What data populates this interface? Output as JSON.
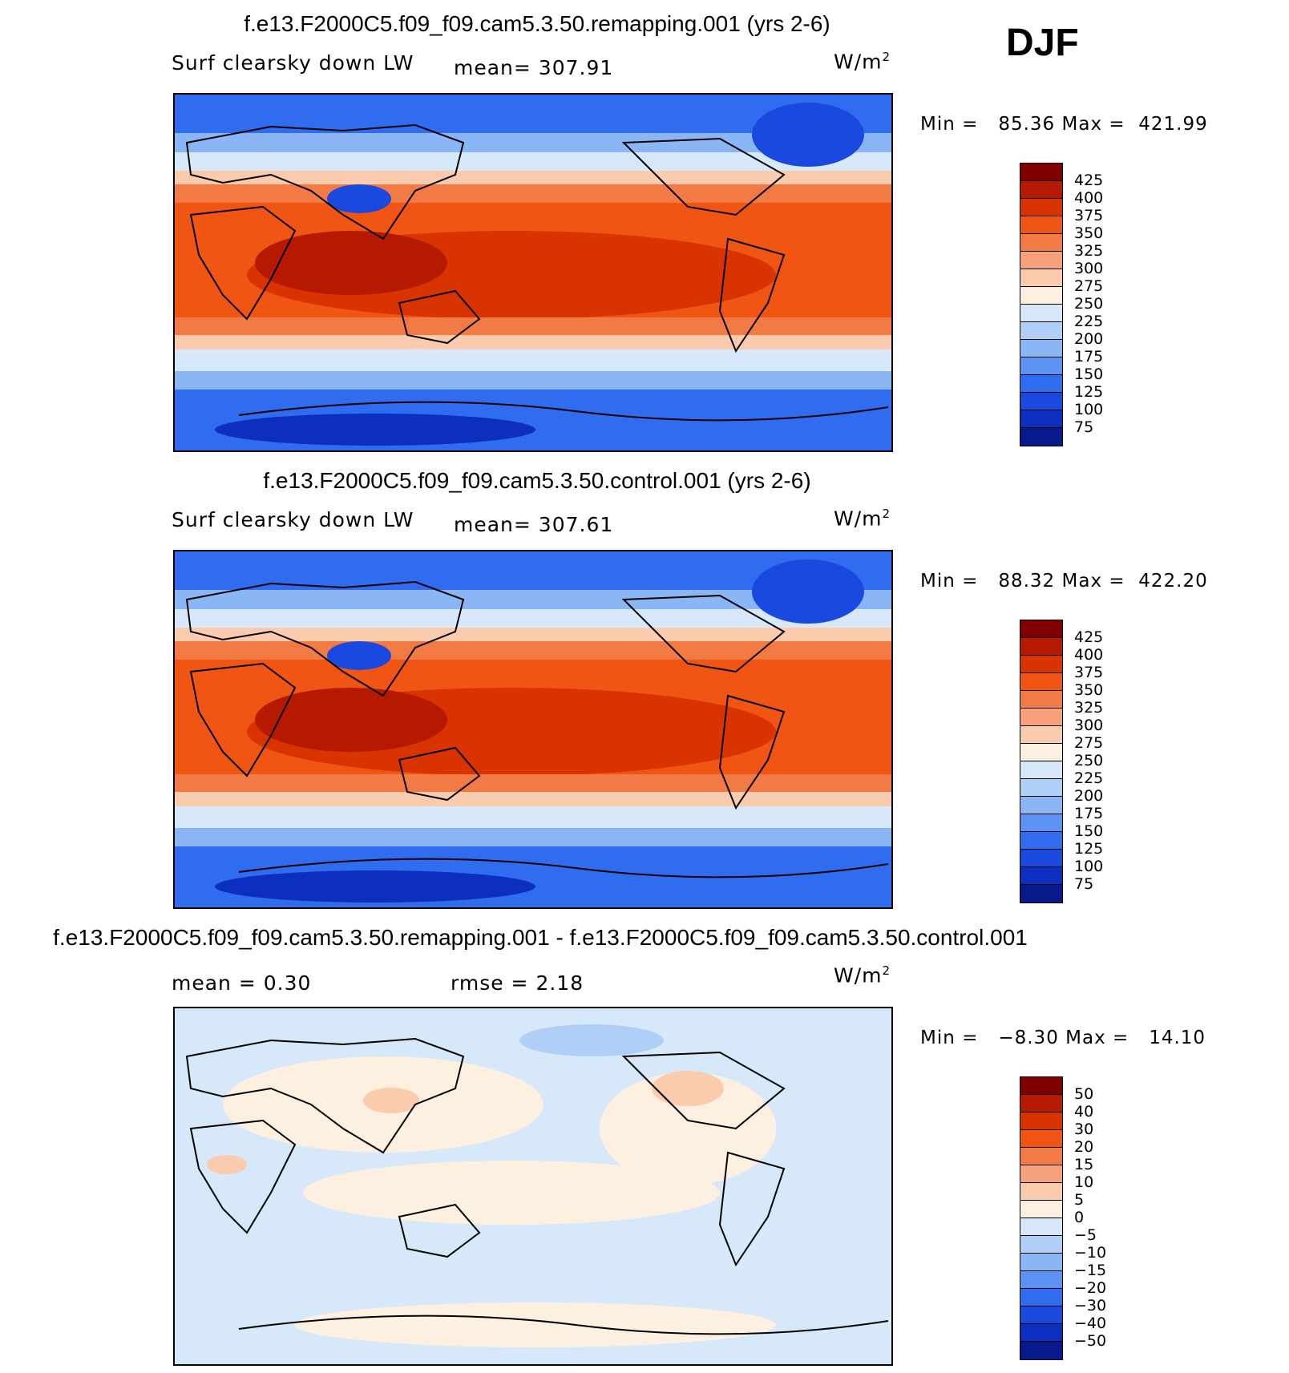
{
  "season": "DJF",
  "panels": [
    {
      "title": "f.e13.F2000C5.f09_f09.cam5.3.50.remapping.001 (yrs 2-6)",
      "left_label": "Surf clearsky down LW",
      "center_label": "mean= 307.91",
      "units_base": "W/m",
      "units_exp": "2",
      "min_label": "Min =",
      "min_value": "85.36",
      "max_label": "Max =",
      "max_value": "421.99",
      "colors": [
        "#800000",
        "#b51a00",
        "#d93300",
        "#f05514",
        "#f27a44",
        "#f7a17a",
        "#fbcbae",
        "#fdf0e0",
        "#d6e8fa",
        "#b0cff7",
        "#8ab6f5",
        "#5b92f3",
        "#2f6cf0",
        "#1a49e0",
        "#0c2fbf",
        "#08198c"
      ],
      "levels": [
        "425",
        "400",
        "375",
        "350",
        "325",
        "300",
        "275",
        "250",
        "225",
        "200",
        "175",
        "150",
        "125",
        "100",
        "75"
      ]
    },
    {
      "title": "f.e13.F2000C5.f09_f09.cam5.3.50.control.001 (yrs 2-6)",
      "left_label": "Surf clearsky down LW",
      "center_label": "mean= 307.61",
      "units_base": "W/m",
      "units_exp": "2",
      "min_label": "Min =",
      "min_value": "88.32",
      "max_label": "Max =",
      "max_value": "422.20",
      "colors": [
        "#800000",
        "#b51a00",
        "#d93300",
        "#f05514",
        "#f27a44",
        "#f7a17a",
        "#fbcbae",
        "#fdf0e0",
        "#d6e8fa",
        "#b0cff7",
        "#8ab6f5",
        "#5b92f3",
        "#2f6cf0",
        "#1a49e0",
        "#0c2fbf",
        "#08198c"
      ],
      "levels": [
        "425",
        "400",
        "375",
        "350",
        "325",
        "300",
        "275",
        "250",
        "225",
        "200",
        "175",
        "150",
        "125",
        "100",
        "75"
      ]
    },
    {
      "title": "f.e13.F2000C5.f09_f09.cam5.3.50.remapping.001 - f.e13.F2000C5.f09_f09.cam5.3.50.control.001",
      "left_label": "mean =     0.30",
      "center_label": "rmse =     2.18",
      "units_base": "W/m",
      "units_exp": "2",
      "min_label": "Min =",
      "min_value": "−8.30",
      "max_label": "Max =",
      "max_value": "14.10",
      "colors": [
        "#800000",
        "#b51a00",
        "#d93300",
        "#f05514",
        "#f27a44",
        "#f7a17a",
        "#fbcbae",
        "#fdf0e0",
        "#d6e8fa",
        "#b0cff7",
        "#8ab6f5",
        "#5b92f3",
        "#2f6cf0",
        "#1a49e0",
        "#0c2fbf",
        "#08198c"
      ],
      "levels": [
        "50",
        "40",
        "30",
        "20",
        "15",
        "10",
        "5",
        "0",
        "−5",
        "−10",
        "−15",
        "−20",
        "−30",
        "−40",
        "−50"
      ]
    }
  ]
}
